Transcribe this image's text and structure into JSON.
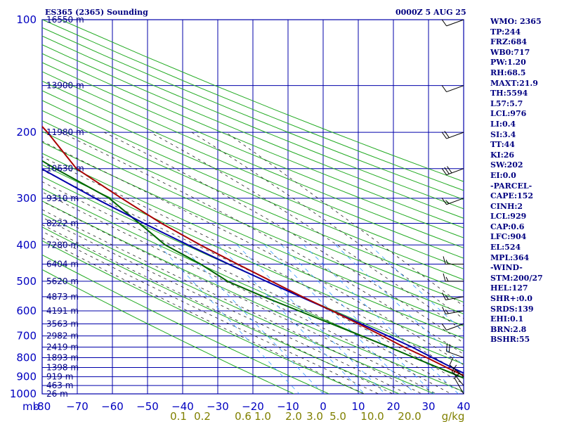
{
  "header": {
    "title": "ES365 (2365) Sounding",
    "datetime": "0000Z  5 AUG 25"
  },
  "colors": {
    "grid": "#0000aa",
    "dry_adiabat": "#22aa22",
    "moist_adiabat": "#222222",
    "mixing_ratio": "#3399ff",
    "temperature": "#aa0000",
    "dewpoint": "#006600",
    "parcel": "#0000aa",
    "wind_barb": "#000000"
  },
  "indices": [
    "WMO: 2365",
    "TP:244",
    "FRZ:684",
    "WB0:717",
    "PW:1.20",
    "RH:68.5",
    "MAXT:21.9",
    "TH:5594",
    "L57:5.7",
    "LCL:976",
    "LI:0.4",
    "SI:3.4",
    "TT:44",
    "KI:26",
    "SW:202",
    "EI:0.0",
    "-PARCEL-",
    "CAPE:152",
    "CINH:2",
    "LCL:929",
    "CAP:0.6",
    "LFC:904",
    "EL:524",
    "MPL:364",
    "-WIND-",
    "STM:200/27",
    "HEL:127",
    "SHR+:0.0",
    "SRDS:139",
    "EHI:0.1",
    "BRN:2.8",
    "BSHR:55"
  ],
  "chart_data": {
    "type": "line",
    "subtype": "skew-t log-p sounding",
    "y_axis": "pressure (mb)",
    "y_unit_label": "mb",
    "ylim": [
      1000,
      100
    ],
    "y_scale": "log",
    "xlim": [
      -80,
      40
    ],
    "x_unit": "°C",
    "pressure_levels": [
      100,
      200,
      300,
      400,
      500,
      600,
      700,
      800,
      900,
      1000
    ],
    "pressure_labels": [
      "100",
      "200",
      "300",
      "400",
      "500",
      "600",
      "700",
      "800",
      "900",
      "1000"
    ],
    "height_labels": [
      {
        "p": 100,
        "label": "16550 m"
      },
      {
        "p": 150,
        "label": "13900 m"
      },
      {
        "p": 200,
        "label": "11980 m"
      },
      {
        "p": 250,
        "label": "10630 m"
      },
      {
        "p": 300,
        "label": "9310 m"
      },
      {
        "p": 350,
        "label": "8222 m"
      },
      {
        "p": 400,
        "label": "7280 m"
      },
      {
        "p": 450,
        "label": "6404 m"
      },
      {
        "p": 500,
        "label": "5620 m"
      },
      {
        "p": 550,
        "label": "4873 m"
      },
      {
        "p": 600,
        "label": "4191 m"
      },
      {
        "p": 650,
        "label": "3563 m"
      },
      {
        "p": 700,
        "label": "2982 m"
      },
      {
        "p": 750,
        "label": "2419 m"
      },
      {
        "p": 800,
        "label": "1893 m"
      },
      {
        "p": 850,
        "label": "1398 m"
      },
      {
        "p": 900,
        "label": "919 m"
      },
      {
        "p": 950,
        "label": "463 m"
      },
      {
        "p": 1000,
        "label": "26 m"
      }
    ],
    "temp_ticks": [
      -80,
      -70,
      -60,
      -50,
      -40,
      -30,
      -20,
      -10,
      0,
      10,
      20,
      30,
      40
    ],
    "temp_tick_labels": [
      "-80",
      "−70",
      "−60",
      "−50",
      "−40",
      "−30",
      "−20",
      "−10",
      "0",
      "10",
      "20",
      "30",
      "40"
    ],
    "mixing_ratio_labels": [
      "0.1",
      "0.2",
      "0.6",
      "1.0",
      "2.0",
      "3.0",
      "5.0",
      "10.0",
      "20.0",
      "g/kg"
    ],
    "mixing_ratio_values": [
      0.1,
      0.2,
      0.6,
      1.0,
      2.0,
      3.0,
      5.0,
      10.0,
      20.0
    ],
    "series": [
      {
        "id": "temperature",
        "points": [
          [
            1000,
            18.7
          ],
          [
            950,
            14.0
          ],
          [
            900,
            9.5
          ],
          [
            850,
            6.0
          ],
          [
            800,
            2.4
          ],
          [
            750,
            -1.8
          ],
          [
            700,
            -5.5
          ],
          [
            650,
            -9.8
          ],
          [
            600,
            -14.5
          ],
          [
            550,
            -20.0
          ],
          [
            500,
            -25.5
          ],
          [
            450,
            -31.5
          ],
          [
            400,
            -38.0
          ],
          [
            350,
            -44.5
          ],
          [
            300,
            -50.5
          ],
          [
            250,
            -57.0
          ],
          [
            200,
            -57.5
          ],
          [
            150,
            -60.0
          ],
          [
            100,
            -63.0
          ]
        ]
      },
      {
        "id": "dewpoint",
        "points": [
          [
            1000,
            16.5
          ],
          [
            950,
            12.0
          ],
          [
            900,
            8.0
          ],
          [
            850,
            3.5
          ],
          [
            800,
            -1.2
          ],
          [
            750,
            -6.0
          ],
          [
            700,
            -11.5
          ],
          [
            650,
            -17.5
          ],
          [
            600,
            -24.0
          ],
          [
            550,
            -31.0
          ],
          [
            500,
            -38.0
          ],
          [
            450,
            -42.0
          ],
          [
            400,
            -48.0
          ],
          [
            300,
            -54.0
          ],
          [
            250,
            -63.0
          ],
          [
            200,
            -73.0
          ],
          [
            170,
            -84.0
          ],
          [
            140,
            -96.0
          ]
        ]
      },
      {
        "id": "parcel",
        "points": [
          [
            1000,
            19.5
          ],
          [
            950,
            16.0
          ],
          [
            900,
            11.0
          ],
          [
            850,
            7.5
          ],
          [
            800,
            4.0
          ],
          [
            750,
            0.5
          ],
          [
            700,
            -4.0
          ],
          [
            650,
            -9.0
          ],
          [
            600,
            -14.5
          ],
          [
            550,
            -20.5
          ],
          [
            500,
            -27.0
          ],
          [
            450,
            -34.0
          ],
          [
            400,
            -41.5
          ],
          [
            350,
            -49.5
          ],
          [
            300,
            -58.0
          ],
          [
            250,
            -67.0
          ],
          [
            200,
            -77.0
          ],
          [
            170,
            -84.0
          ]
        ]
      }
    ],
    "wind_barbs": [
      {
        "p": 100,
        "dir": 250,
        "kt": 10
      },
      {
        "p": 150,
        "dir": 250,
        "kt": 10
      },
      {
        "p": 200,
        "dir": 250,
        "kt": 20
      },
      {
        "p": 250,
        "dir": 250,
        "kt": 30
      },
      {
        "p": 300,
        "dir": 250,
        "kt": 15
      },
      {
        "p": 450,
        "dir": 270,
        "kt": 15
      },
      {
        "p": 500,
        "dir": 270,
        "kt": 15
      },
      {
        "p": 550,
        "dir": 260,
        "kt": 15
      },
      {
        "p": 600,
        "dir": 260,
        "kt": 15
      },
      {
        "p": 650,
        "dir": 250,
        "kt": 10
      },
      {
        "p": 800,
        "dir": 290,
        "kt": 20
      },
      {
        "p": 900,
        "dir": 310,
        "kt": 10
      },
      {
        "p": 950,
        "dir": 320,
        "kt": 15
      },
      {
        "p": 1000,
        "dir": 330,
        "kt": 10
      }
    ]
  }
}
